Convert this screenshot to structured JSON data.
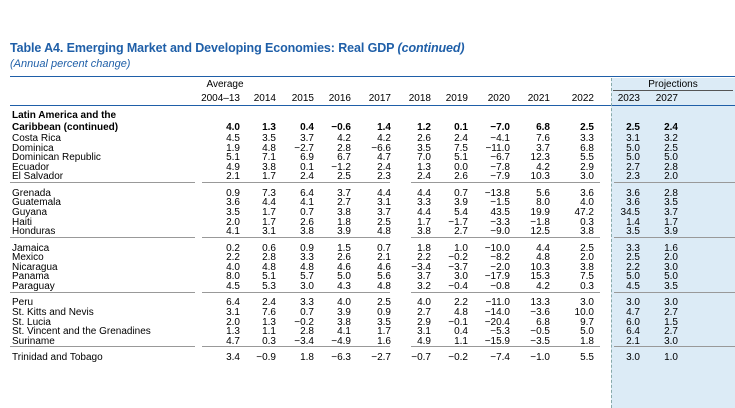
{
  "title": "Table A4. Emerging Market and Developing Economies: Real GDP",
  "title_continued": "(continued)",
  "subtitle": "(Annual percent change)",
  "header": {
    "average_label": "Average",
    "projections_label": "Projections",
    "years": [
      "2004–13",
      "2014",
      "2015",
      "2016",
      "2017",
      "2018",
      "2019",
      "2020",
      "2021",
      "2022",
      "2023",
      "2027"
    ]
  },
  "region": {
    "name_line1": "Latin America and the",
    "name_line2": "Caribbean (continued)",
    "values": [
      "4.0",
      "1.3",
      "0.4",
      "−0.6",
      "1.4",
      "1.2",
      "0.1",
      "−7.0",
      "6.8",
      "2.5",
      "2.5",
      "2.4"
    ]
  },
  "groups": [
    [
      {
        "name": "Costa Rica",
        "values": [
          "4.5",
          "3.5",
          "3.7",
          "4.2",
          "4.2",
          "2.6",
          "2.4",
          "−4.1",
          "7.6",
          "3.3",
          "3.1",
          "3.2"
        ]
      },
      {
        "name": "Dominica",
        "values": [
          "1.9",
          "4.8",
          "−2.7",
          "2.8",
          "−6.6",
          "3.5",
          "7.5",
          "−11.0",
          "3.7",
          "6.8",
          "5.0",
          "2.5"
        ]
      },
      {
        "name": "Dominican Republic",
        "values": [
          "5.1",
          "7.1",
          "6.9",
          "6.7",
          "4.7",
          "7.0",
          "5.1",
          "−6.7",
          "12.3",
          "5.5",
          "5.0",
          "5.0"
        ]
      },
      {
        "name": "Ecuador",
        "values": [
          "4.9",
          "3.8",
          "0.1",
          "−1.2",
          "2.4",
          "1.3",
          "0.0",
          "−7.8",
          "4.2",
          "2.9",
          "2.7",
          "2.8"
        ]
      },
      {
        "name": "El Salvador",
        "values": [
          "2.1",
          "1.7",
          "2.4",
          "2.5",
          "2.3",
          "2.4",
          "2.6",
          "−7.9",
          "10.3",
          "3.0",
          "2.3",
          "2.0"
        ]
      }
    ],
    [
      {
        "name": "Grenada",
        "values": [
          "0.9",
          "7.3",
          "6.4",
          "3.7",
          "4.4",
          "4.4",
          "0.7",
          "−13.8",
          "5.6",
          "3.6",
          "3.6",
          "2.8"
        ]
      },
      {
        "name": "Guatemala",
        "values": [
          "3.6",
          "4.4",
          "4.1",
          "2.7",
          "3.1",
          "3.3",
          "3.9",
          "−1.5",
          "8.0",
          "4.0",
          "3.6",
          "3.5"
        ]
      },
      {
        "name": "Guyana",
        "values": [
          "3.5",
          "1.7",
          "0.7",
          "3.8",
          "3.7",
          "4.4",
          "5.4",
          "43.5",
          "19.9",
          "47.2",
          "34.5",
          "3.7"
        ]
      },
      {
        "name": "Haiti",
        "values": [
          "2.0",
          "1.7",
          "2.6",
          "1.8",
          "2.5",
          "1.7",
          "−1.7",
          "−3.3",
          "−1.8",
          "0.3",
          "1.4",
          "1.7"
        ]
      },
      {
        "name": "Honduras",
        "values": [
          "4.1",
          "3.1",
          "3.8",
          "3.9",
          "4.8",
          "3.8",
          "2.7",
          "−9.0",
          "12.5",
          "3.8",
          "3.5",
          "3.9"
        ]
      }
    ],
    [
      {
        "name": "Jamaica",
        "values": [
          "0.2",
          "0.6",
          "0.9",
          "1.5",
          "0.7",
          "1.8",
          "1.0",
          "−10.0",
          "4.4",
          "2.5",
          "3.3",
          "1.6"
        ]
      },
      {
        "name": "Mexico",
        "values": [
          "2.2",
          "2.8",
          "3.3",
          "2.6",
          "2.1",
          "2.2",
          "−0.2",
          "−8.2",
          "4.8",
          "2.0",
          "2.5",
          "2.0"
        ]
      },
      {
        "name": "Nicaragua",
        "values": [
          "4.0",
          "4.8",
          "4.8",
          "4.6",
          "4.6",
          "−3.4",
          "−3.7",
          "−2.0",
          "10.3",
          "3.8",
          "2.2",
          "3.0"
        ]
      },
      {
        "name": "Panama",
        "values": [
          "8.0",
          "5.1",
          "5.7",
          "5.0",
          "5.6",
          "3.7",
          "3.0",
          "−17.9",
          "15.3",
          "7.5",
          "5.0",
          "5.0"
        ]
      },
      {
        "name": "Paraguay",
        "values": [
          "4.5",
          "5.3",
          "3.0",
          "4.3",
          "4.8",
          "3.2",
          "−0.4",
          "−0.8",
          "4.2",
          "0.3",
          "4.5",
          "3.5"
        ]
      }
    ],
    [
      {
        "name": "Peru",
        "values": [
          "6.4",
          "2.4",
          "3.3",
          "4.0",
          "2.5",
          "4.0",
          "2.2",
          "−11.0",
          "13.3",
          "3.0",
          "3.0",
          "3.0"
        ]
      },
      {
        "name": "St. Kitts and Nevis",
        "values": [
          "3.1",
          "7.6",
          "0.7",
          "3.9",
          "0.9",
          "2.7",
          "4.8",
          "−14.0",
          "−3.6",
          "10.0",
          "4.7",
          "2.7"
        ]
      },
      {
        "name": "St. Lucia",
        "values": [
          "2.0",
          "1.3",
          "−0.2",
          "3.8",
          "3.5",
          "2.9",
          "−0.1",
          "−20.4",
          "6.8",
          "9.7",
          "6.0",
          "1.5"
        ]
      },
      {
        "name": "St. Vincent and the Grenadines",
        "values": [
          "1.3",
          "1.1",
          "2.8",
          "4.1",
          "1.7",
          "3.1",
          "0.4",
          "−5.3",
          "−0.5",
          "5.0",
          "6.4",
          "2.7"
        ]
      },
      {
        "name": "Suriname",
        "values": [
          "4.7",
          "0.3",
          "−3.4",
          "−4.9",
          "1.6",
          "4.9",
          "1.1",
          "−15.9",
          "−3.5",
          "1.8",
          "2.1",
          "3.0"
        ]
      }
    ],
    [
      {
        "name": "Trinidad and Tobago",
        "values": [
          "3.4",
          "−0.9",
          "1.8",
          "−6.3",
          "−2.7",
          "−0.7",
          "−0.2",
          "−7.4",
          "−1.0",
          "5.5",
          "3.0",
          "1.0"
        ]
      }
    ]
  ]
}
